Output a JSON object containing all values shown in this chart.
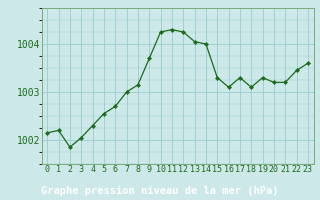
{
  "x": [
    0,
    1,
    2,
    3,
    4,
    5,
    6,
    7,
    8,
    9,
    10,
    11,
    12,
    13,
    14,
    15,
    16,
    17,
    18,
    19,
    20,
    21,
    22,
    23
  ],
  "y": [
    1002.15,
    1002.2,
    1001.85,
    1002.05,
    1002.3,
    1002.55,
    1002.7,
    1003.0,
    1003.15,
    1003.7,
    1004.25,
    1004.3,
    1004.25,
    1004.05,
    1004.0,
    1003.3,
    1003.1,
    1003.3,
    1003.1,
    1003.3,
    1003.2,
    1003.2,
    1003.45,
    1003.6
  ],
  "line_color": "#1a6b1a",
  "marker_color": "#1a6b1a",
  "bg_color": "#cce8e8",
  "plot_bg_color": "#cce8e8",
  "bottom_bg_color": "#2a7a2a",
  "grid_color": "#99cccc",
  "xlabel": "Graphe pression niveau de la mer (hPa)",
  "xlabel_color": "#ffffff",
  "ylabel_ticks": [
    1002,
    1003,
    1004
  ],
  "ylim": [
    1001.5,
    1004.75
  ],
  "xlim": [
    -0.5,
    23.5
  ],
  "xtick_labels": [
    "0",
    "1",
    "2",
    "3",
    "4",
    "5",
    "6",
    "7",
    "8",
    "9",
    "10",
    "11",
    "12",
    "13",
    "14",
    "15",
    "16",
    "17",
    "18",
    "19",
    "20",
    "21",
    "22",
    "23"
  ],
  "tick_color": "#1a6b1a",
  "spine_color": "#7aaa7a",
  "tick_fontsize": 6,
  "xlabel_fontsize": 7.5,
  "ytick_fontsize": 7
}
